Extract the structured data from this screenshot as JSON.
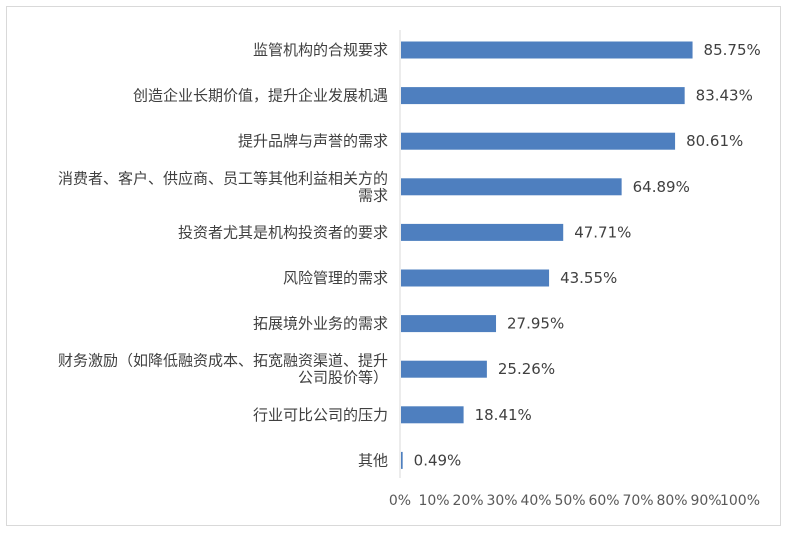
{
  "chart_data": {
    "type": "bar",
    "orientation": "horizontal",
    "categories": [
      [
        "监管机构的合规要求"
      ],
      [
        "创造企业长期价值，提升企业发展机遇"
      ],
      [
        "提升品牌与声誉的需求"
      ],
      [
        "消费者、客户、供应商、员工等其他利益相关方的",
        "需求"
      ],
      [
        "投资者尤其是机构投资者的要求"
      ],
      [
        "风险管理的需求"
      ],
      [
        "拓展境外业务的需求"
      ],
      [
        "财务激励（如降低融资成本、拓宽融资渠道、提升",
        "公司股价等）"
      ],
      [
        "行业可比公司的压力"
      ],
      [
        "其他"
      ]
    ],
    "values": [
      85.75,
      83.43,
      80.61,
      64.89,
      47.71,
      43.55,
      27.95,
      25.26,
      18.41,
      0.49
    ],
    "value_labels": [
      "85.75%",
      "83.43%",
      "80.61%",
      "64.89%",
      "47.71%",
      "43.55%",
      "27.95%",
      "25.26%",
      "18.41%",
      "0.49%"
    ],
    "xlim": [
      0,
      100
    ],
    "x_ticks": [
      "0%",
      "10%",
      "20%",
      "30%",
      "40%",
      "50%",
      "60%",
      "70%",
      "80%",
      "90%",
      "100%"
    ],
    "bar_color": "#4e7fbf",
    "axis_color": "#d9d9d9",
    "grid": false,
    "legend": "none"
  }
}
